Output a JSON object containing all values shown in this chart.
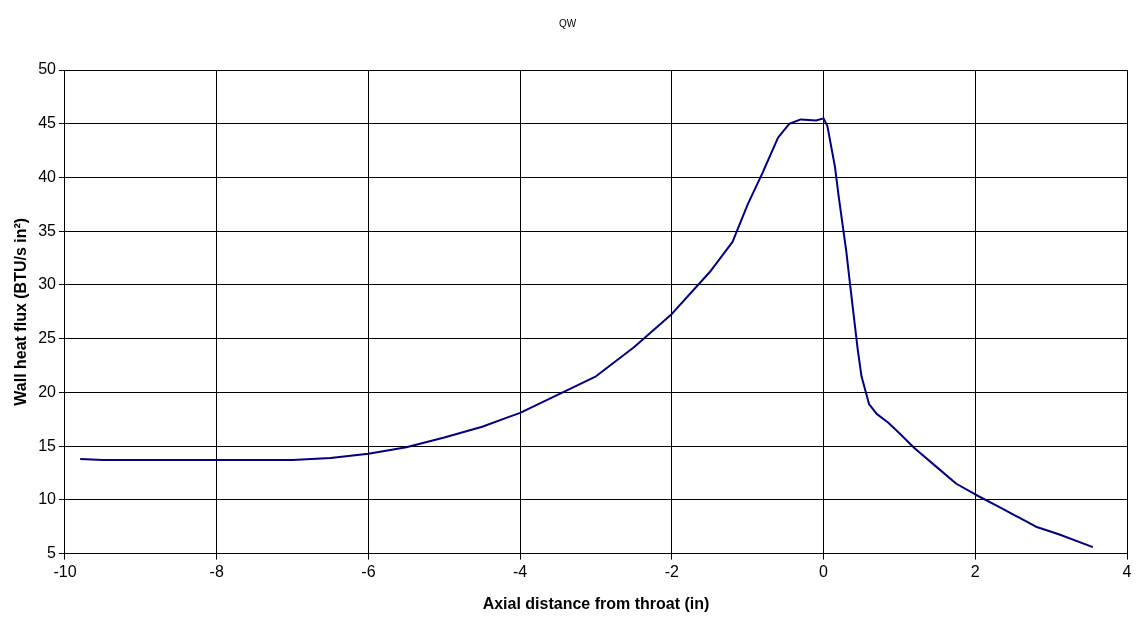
{
  "chart_data": {
    "type": "line",
    "title": "QW",
    "xlabel": "Axial distance from throat (in)",
    "ylabel": "Wall heat flux (BTU/s in²)",
    "xlim": [
      -10,
      4
    ],
    "xticks": [
      -10,
      -8,
      -6,
      -4,
      -2,
      0,
      2,
      4
    ],
    "ylim": [
      5,
      50
    ],
    "yticks": [
      5,
      10,
      15,
      20,
      25,
      30,
      35,
      40,
      45,
      50
    ],
    "grid": true,
    "legend": false,
    "marker": "none",
    "line_style": "solid",
    "series": [
      {
        "color": "#000080",
        "x": [
          -9.8,
          -9.5,
          -7,
          -6.5,
          -6,
          -5.5,
          -5,
          -4.5,
          -4,
          -3.5,
          -3,
          -2.5,
          -2,
          -1.5,
          -1.2,
          -1,
          -0.8,
          -0.6,
          -0.45,
          -0.3,
          -0.1,
          0,
          0.05,
          0.15,
          0.2,
          0.3,
          0.35,
          0.45,
          0.5,
          0.6,
          0.7,
          0.85,
          1,
          1.2,
          1.5,
          1.75,
          2,
          2.3,
          2.8,
          3.1,
          3.55
        ],
        "values": [
          13.8,
          13.7,
          13.7,
          13.9,
          14.3,
          14.9,
          15.8,
          16.8,
          18.1,
          19.8,
          21.5,
          24.2,
          27.3,
          31.2,
          34,
          37.5,
          40.5,
          43.7,
          45,
          45.4,
          45.3,
          45.5,
          44.8,
          41,
          38.2,
          33.1,
          30,
          24,
          21.5,
          18.9,
          18,
          17.2,
          16.2,
          14.8,
          13,
          11.5,
          10.5,
          9.4,
          7.5,
          6.8,
          5.6
        ]
      }
    ]
  }
}
